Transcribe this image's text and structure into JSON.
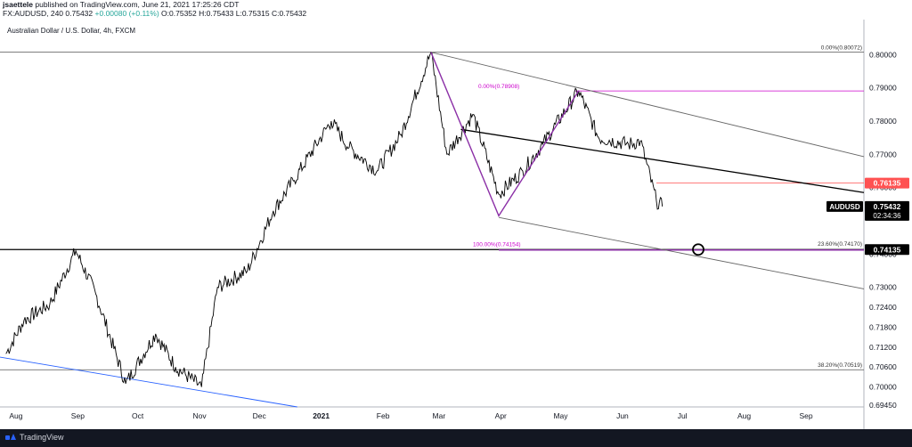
{
  "header": {
    "line1_user": "jsaettele",
    "line1_rest": " published on TradingView.com, June 21, 2021 17:25:26 CDT",
    "symbol": "FX:AUDUSD, 240",
    "last": "0.75432",
    "change": "+0.00080 (+0.11%)",
    "o": "O:0.75352",
    "h": "H:0.75433",
    "l": "L:0.75315",
    "c": "C:0.75432"
  },
  "footer": {
    "brand": "TradingView"
  },
  "colors": {
    "price": "#000000",
    "fib": "#cc00cc",
    "pattern": "#8b2fa6",
    "resistance": "#ff5252",
    "trend_blue": "#2962ff",
    "axis_text": "#131722"
  },
  "chart_data": {
    "type": "line",
    "title": "Australian Dollar / U.S. Dollar, 4h, FXCM",
    "xlabel": "",
    "ylabel": "",
    "ylim": [
      0.694,
      0.81
    ],
    "grid": false,
    "y_ticks": [
      "0.80000",
      "0.79000",
      "0.78000",
      "0.77000",
      "0.76000",
      "0.74000",
      "0.73000",
      "0.72400",
      "0.71800",
      "0.71200",
      "0.70600",
      "0.70000",
      "0.69450"
    ],
    "x_ticks": [
      "Aug",
      "Sep",
      "Oct",
      "Nov",
      "Dec",
      "2021",
      "Feb",
      "Mar",
      "Apr",
      "May",
      "Jun",
      "Jul",
      "Aug",
      "Sep"
    ],
    "series": [
      {
        "x": [
          "2020-07-27",
          "2020-08-05",
          "2020-08-18",
          "2020-08-31",
          "2020-09-10",
          "2020-09-25",
          "2020-10-10",
          "2020-10-20",
          "2020-11-02",
          "2020-11-10",
          "2020-11-25",
          "2020-12-08",
          "2020-12-18",
          "2021-01-06",
          "2021-01-15",
          "2021-01-29",
          "2021-02-10",
          "2021-02-25",
          "2021-03-05",
          "2021-03-18",
          "2021-03-31",
          "2021-04-12",
          "2021-04-22",
          "2021-05-10",
          "2021-05-20",
          "2021-06-04",
          "2021-06-10",
          "2021-06-18",
          "2021-06-21"
        ],
        "values": [
          0.71,
          0.72,
          0.725,
          0.741,
          0.728,
          0.701,
          0.716,
          0.706,
          0.7,
          0.73,
          0.735,
          0.753,
          0.762,
          0.78,
          0.772,
          0.765,
          0.776,
          0.8007,
          0.77,
          0.782,
          0.758,
          0.765,
          0.773,
          0.7891,
          0.775,
          0.773,
          0.774,
          0.756,
          0.7543
        ]
      }
    ],
    "price_badges": [
      {
        "label": "0.76135",
        "value": 0.76135,
        "style": "red"
      },
      {
        "label": "0.75432",
        "value": 0.75432,
        "style": "dark",
        "symbol": "AUDUSD",
        "countdown": "02:34:36"
      },
      {
        "label": "0.74135",
        "value": 0.74135,
        "style": "dark"
      }
    ],
    "annotations": [
      {
        "text": "0.00%(0.80072)",
        "value": 0.80072
      },
      {
        "text": "0.00%(0.78908)",
        "value": 0.78908
      },
      {
        "text": "100.00%(0.74154)",
        "value": 0.74154
      },
      {
        "text": "23.60%(0.74170)",
        "value": 0.7417
      },
      {
        "text": "38.20%(0.70519)",
        "value": 0.70519
      }
    ],
    "levels": [
      0.80072,
      0.78908,
      0.76135,
      0.74135,
      0.70519
    ]
  }
}
